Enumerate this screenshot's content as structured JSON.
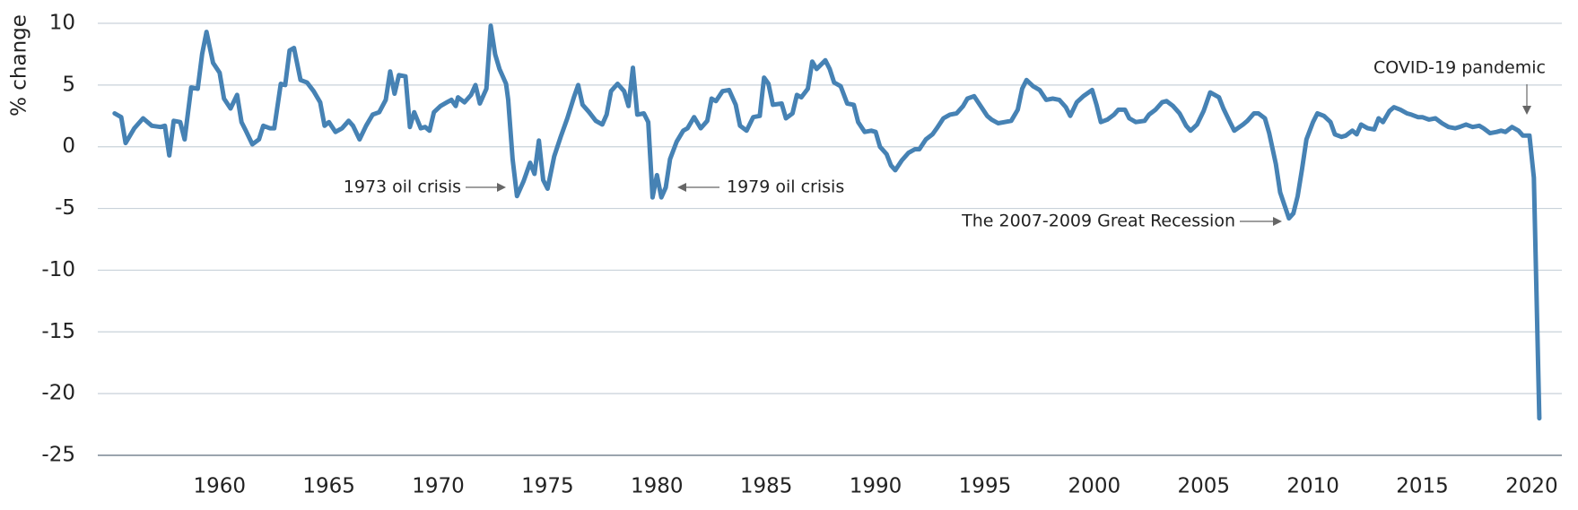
{
  "chart_data": {
    "type": "line",
    "ylabel": "% change",
    "color": "#4682b4",
    "grid": true,
    "xlim": [
      1954.43,
      2021.38
    ],
    "xticks": [
      1960,
      1965,
      1970,
      1975,
      1980,
      1985,
      1990,
      1995,
      2000,
      2005,
      2010,
      2015,
      2020
    ],
    "ylim": [
      -25,
      10
    ],
    "yticks": [
      10,
      5,
      0,
      -5,
      -10,
      -15,
      -20,
      -25
    ],
    "annotations": [
      "1973 oil crisis",
      "1979 oil crisis",
      "The 2007-2009 Great Recession",
      "COVID-19 pandemic"
    ],
    "x": [
      1955.2,
      1955.5,
      1955.7,
      1956.1,
      1956.5,
      1956.9,
      1957.3,
      1957.5,
      1957.7,
      1957.9,
      1958.2,
      1958.4,
      1958.7,
      1959.0,
      1959.2,
      1959.4,
      1959.7,
      1960.0,
      1960.2,
      1960.5,
      1960.8,
      1961.0,
      1961.2,
      1961.5,
      1961.8,
      1962.0,
      1962.3,
      1962.5,
      1962.8,
      1963.0,
      1963.2,
      1963.4,
      1963.7,
      1964.0,
      1964.3,
      1964.6,
      1964.8,
      1965.0,
      1965.3,
      1965.6,
      1965.9,
      1966.1,
      1966.4,
      1966.7,
      1967.0,
      1967.3,
      1967.6,
      1967.8,
      1968.0,
      1968.2,
      1968.5,
      1968.7,
      1968.9,
      1969.2,
      1969.4,
      1969.6,
      1969.8,
      1970.1,
      1970.4,
      1970.6,
      1970.8,
      1970.9,
      1971.2,
      1971.5,
      1971.7,
      1971.9,
      1972.2,
      1972.4,
      1972.6,
      1972.8,
      1973.1,
      1973.2,
      1973.4,
      1973.6,
      1973.9,
      1974.2,
      1974.4,
      1974.6,
      1974.8,
      1975.0,
      1975.3,
      1975.6,
      1975.9,
      1976.2,
      1976.4,
      1976.6,
      1976.9,
      1977.2,
      1977.5,
      1977.7,
      1977.9,
      1978.2,
      1978.5,
      1978.7,
      1978.9,
      1979.1,
      1979.4,
      1979.6,
      1979.8,
      1980.0,
      1980.2,
      1980.4,
      1980.6,
      1980.9,
      1981.2,
      1981.4,
      1981.7,
      1982.0,
      1982.3,
      1982.5,
      1982.7,
      1983.0,
      1983.3,
      1983.6,
      1983.8,
      1984.1,
      1984.4,
      1984.7,
      1984.9,
      1985.1,
      1985.3,
      1985.7,
      1985.9,
      1986.2,
      1986.4,
      1986.6,
      1986.9,
      1987.1,
      1987.3,
      1987.7,
      1987.9,
      1988.1,
      1988.4,
      1988.7,
      1989.0,
      1989.2,
      1989.5,
      1989.8,
      1990.0,
      1990.2,
      1990.5,
      1990.7,
      1990.9,
      1991.2,
      1991.5,
      1991.8,
      1992.0,
      1992.3,
      1992.6,
      1992.8,
      1993.1,
      1993.4,
      1993.7,
      1994.0,
      1994.2,
      1994.5,
      1994.8,
      1995.1,
      1995.3,
      1995.6,
      1995.9,
      1996.2,
      1996.5,
      1996.7,
      1996.9,
      1997.2,
      1997.5,
      1997.8,
      1998.1,
      1998.4,
      1998.7,
      1998.9,
      1999.2,
      1999.5,
      1999.9,
      2000.1,
      2000.3,
      2000.6,
      2000.9,
      2001.1,
      2001.4,
      2001.6,
      2001.9,
      2002.3,
      2002.5,
      2002.8,
      2003.1,
      2003.3,
      2003.6,
      2003.9,
      2004.2,
      2004.4,
      2004.7,
      2005.0,
      2005.3,
      2005.7,
      2005.9,
      2006.2,
      2006.4,
      2006.8,
      2007.0,
      2007.3,
      2007.5,
      2007.8,
      2008.0,
      2008.3,
      2008.5,
      2008.9,
      2009.1,
      2009.3,
      2009.5,
      2009.7,
      2010.0,
      2010.2,
      2010.5,
      2010.8,
      2011.0,
      2011.3,
      2011.5,
      2011.8,
      2012.0,
      2012.2,
      2012.5,
      2012.8,
      2013.0,
      2013.2,
      2013.5,
      2013.7,
      2014.0,
      2014.3,
      2014.5,
      2014.8,
      2015.0,
      2015.3,
      2015.6,
      2015.9,
      2016.2,
      2016.5,
      2016.7,
      2017.0,
      2017.3,
      2017.6,
      2017.8,
      2018.1,
      2018.4,
      2018.6,
      2018.8,
      2019.1,
      2019.4,
      2019.6,
      2019.9,
      2020.1,
      2020.35
    ],
    "values": [
      2.7,
      2.4,
      0.3,
      1.5,
      2.3,
      1.7,
      1.6,
      1.7,
      -0.7,
      2.1,
      2.0,
      0.6,
      4.8,
      4.7,
      7.5,
      9.3,
      6.8,
      6.0,
      3.9,
      3.1,
      4.2,
      2.0,
      1.3,
      0.2,
      0.6,
      1.7,
      1.5,
      1.5,
      5.1,
      5.0,
      7.8,
      8.0,
      5.4,
      5.2,
      4.5,
      3.6,
      1.7,
      2.0,
      1.2,
      1.5,
      2.1,
      1.7,
      0.6,
      1.7,
      2.6,
      2.8,
      3.8,
      6.1,
      4.3,
      5.8,
      5.7,
      1.6,
      2.8,
      1.5,
      1.6,
      1.3,
      2.8,
      3.3,
      3.6,
      3.8,
      3.3,
      4.0,
      3.6,
      4.2,
      5.0,
      3.5,
      4.7,
      9.8,
      7.5,
      6.3,
      5.1,
      3.8,
      -1.0,
      -4.0,
      -2.8,
      -1.3,
      -2.2,
      0.5,
      -2.7,
      -3.4,
      -0.8,
      0.8,
      2.3,
      4.0,
      5.0,
      3.4,
      2.8,
      2.1,
      1.8,
      2.6,
      4.5,
      5.1,
      4.5,
      3.3,
      6.4,
      2.6,
      2.7,
      2.0,
      -4.1,
      -2.3,
      -4.1,
      -3.3,
      -1.0,
      0.4,
      1.3,
      1.5,
      2.4,
      1.5,
      2.1,
      3.9,
      3.7,
      4.5,
      4.6,
      3.4,
      1.7,
      1.3,
      2.4,
      2.5,
      5.6,
      5.1,
      3.4,
      3.5,
      2.3,
      2.7,
      4.2,
      4.0,
      4.7,
      6.9,
      6.3,
      7.0,
      6.3,
      5.2,
      4.9,
      3.5,
      3.4,
      2.0,
      1.2,
      1.3,
      1.2,
      0.0,
      -0.6,
      -1.5,
      -1.9,
      -1.1,
      -0.5,
      -0.2,
      -0.2,
      0.6,
      1.0,
      1.5,
      2.3,
      2.6,
      2.7,
      3.3,
      3.9,
      4.1,
      3.3,
      2.5,
      2.2,
      1.9,
      2.0,
      2.1,
      3.0,
      4.7,
      5.4,
      4.9,
      4.6,
      3.8,
      3.9,
      3.8,
      3.2,
      2.5,
      3.6,
      4.1,
      4.6,
      3.4,
      2.0,
      2.2,
      2.6,
      3.0,
      3.0,
      2.3,
      2.0,
      2.1,
      2.6,
      3.0,
      3.6,
      3.7,
      3.3,
      2.7,
      1.7,
      1.3,
      1.8,
      2.9,
      4.4,
      4.0,
      3.1,
      2.0,
      1.3,
      1.8,
      2.1,
      2.7,
      2.7,
      2.3,
      1.1,
      -1.4,
      -3.7,
      -5.8,
      -5.4,
      -4.0,
      -1.8,
      0.6,
      2.0,
      2.7,
      2.5,
      2.0,
      1.0,
      0.8,
      0.9,
      1.3,
      1.0,
      1.8,
      1.5,
      1.4,
      2.3,
      2.0,
      2.9,
      3.2,
      3.0,
      2.7,
      2.6,
      2.4,
      2.4,
      2.2,
      2.3,
      1.9,
      1.6,
      1.5,
      1.6,
      1.8,
      1.6,
      1.7,
      1.5,
      1.1,
      1.2,
      1.3,
      1.2,
      1.6,
      1.3,
      0.9,
      0.9,
      -2.5,
      -22.0
    ]
  }
}
